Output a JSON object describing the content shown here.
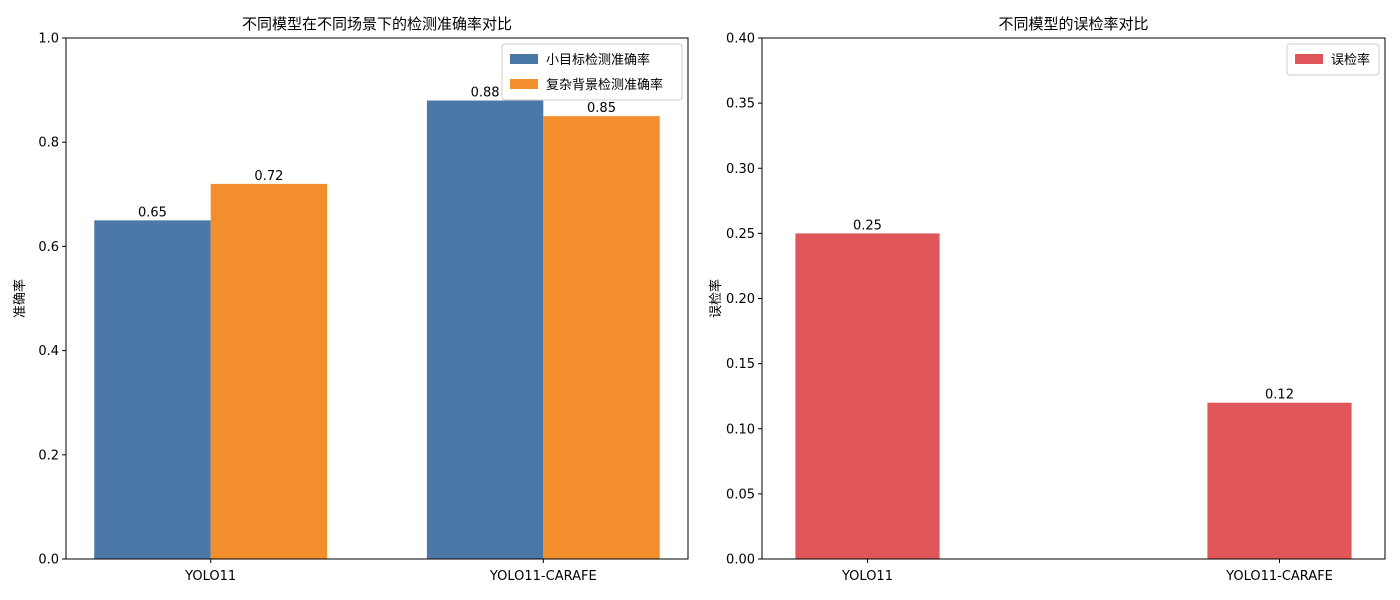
{
  "chart_data": [
    {
      "type": "bar",
      "title": "不同模型在不同场景下的检测准确率对比",
      "xlabel": "",
      "ylabel": "准确率",
      "categories": [
        "YOLO11",
        "YOLO11-CARAFE"
      ],
      "series": [
        {
          "name": "小目标检测准确率",
          "values": [
            0.65,
            0.88
          ],
          "color": "#4c78a8"
        },
        {
          "name": "复杂背景检测准确率",
          "values": [
            0.72,
            0.85
          ],
          "color": "#f28e2b"
        }
      ],
      "data_labels": [
        [
          "0.65",
          "0.88"
        ],
        [
          "0.72",
          "0.85"
        ]
      ],
      "ylim": [
        0,
        1.0
      ],
      "yticks": [
        0.0,
        0.2,
        0.4,
        0.6,
        0.8,
        1.0
      ],
      "ytick_labels": [
        "0.0",
        "0.2",
        "0.4",
        "0.6",
        "0.8",
        "1.0"
      ],
      "grid": false,
      "legend_position": "top-right"
    },
    {
      "type": "bar",
      "title": "不同模型的误检率对比",
      "xlabel": "",
      "ylabel": "误检率",
      "categories": [
        "YOLO11",
        "YOLO11-CARAFE"
      ],
      "series": [
        {
          "name": "误检率",
          "values": [
            0.25,
            0.12
          ],
          "color": "#e15759"
        }
      ],
      "data_labels": [
        [
          "0.25",
          "0.12"
        ]
      ],
      "ylim": [
        0,
        0.4
      ],
      "yticks": [
        0.0,
        0.05,
        0.1,
        0.15,
        0.2,
        0.25,
        0.3,
        0.35,
        0.4
      ],
      "ytick_labels": [
        "0.00",
        "0.05",
        "0.10",
        "0.15",
        "0.20",
        "0.25",
        "0.30",
        "0.35",
        "0.40"
      ],
      "grid": false,
      "legend_position": "top-right"
    }
  ]
}
